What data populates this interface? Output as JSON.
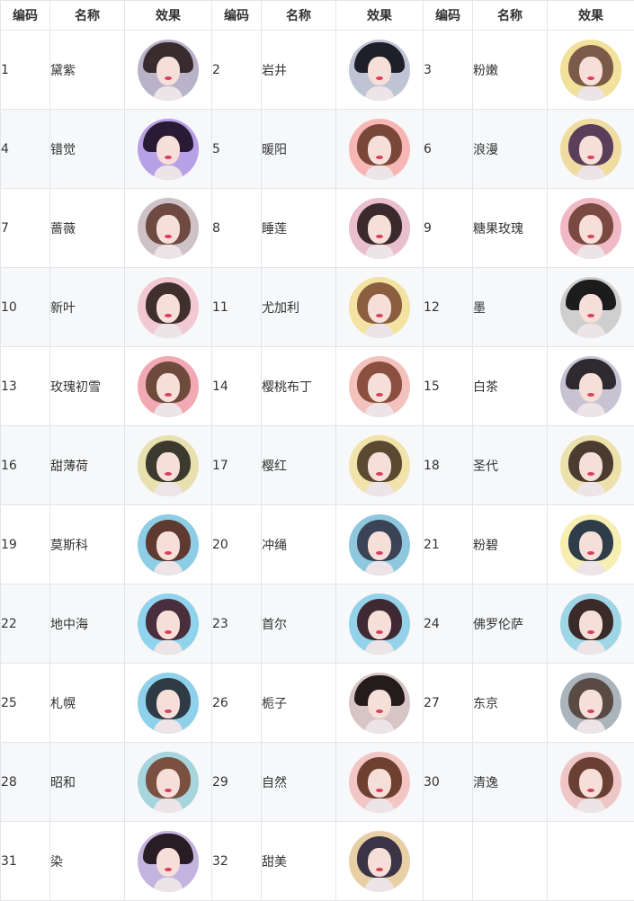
{
  "table": {
    "headers": [
      "编码",
      "名称",
      "效果",
      "编码",
      "名称",
      "效果",
      "编码",
      "名称",
      "效果"
    ],
    "rows": [
      [
        {
          "code": "1",
          "name": "黛紫",
          "bg": "#b9b3c9",
          "hair": "#3a2c2e",
          "hat": true
        },
        {
          "code": "2",
          "name": "岩井",
          "bg": "#bfc4d4",
          "hair": "#1f1f2a",
          "hat": true
        },
        {
          "code": "3",
          "name": "粉嫩",
          "bg": "#f2e19a",
          "hair": "#7b5a4a",
          "hat": false
        }
      ],
      [
        {
          "code": "4",
          "name": "错觉",
          "bg": "#b7a0e6",
          "hair": "#2a1a33",
          "hat": true
        },
        {
          "code": "5",
          "name": "暖阳",
          "bg": "#f6b7b4",
          "hair": "#7a4638",
          "hat": false
        },
        {
          "code": "6",
          "name": "浪漫",
          "bg": "#f0dca0",
          "hair": "#5a3e5a",
          "hat": false
        }
      ],
      [
        {
          "code": "7",
          "name": "蔷薇",
          "bg": "#cfc2c6",
          "hair": "#6e4a40",
          "hat": false
        },
        {
          "code": "8",
          "name": "睡莲",
          "bg": "#e9bfcd",
          "hair": "#3a2a2e",
          "hat": false
        },
        {
          "code": "9",
          "name": "糖果玫瑰",
          "bg": "#f1b9c6",
          "hair": "#7a4a40",
          "hat": false
        }
      ],
      [
        {
          "code": "10",
          "name": "新叶",
          "bg": "#f2c9d2",
          "hair": "#3f2f2d",
          "hat": false
        },
        {
          "code": "11",
          "name": "尤加利",
          "bg": "#f3e2a1",
          "hair": "#8a5e3e",
          "hat": false
        },
        {
          "code": "12",
          "name": "墨",
          "bg": "#cfcfcf",
          "hair": "#1c1c1c",
          "hat": true
        }
      ],
      [
        {
          "code": "13",
          "name": "玫瑰初雪",
          "bg": "#f2a9b4",
          "hair": "#6d4a3c",
          "hat": false
        },
        {
          "code": "14",
          "name": "樱桃布丁",
          "bg": "#f4c2bc",
          "hair": "#8a4f3e",
          "hat": false
        },
        {
          "code": "15",
          "name": "白茶",
          "bg": "#c7c3d3",
          "hair": "#2e2a30",
          "hat": true
        }
      ],
      [
        {
          "code": "16",
          "name": "甜薄荷",
          "bg": "#e9e0b0",
          "hair": "#3c3a2e",
          "hat": false
        },
        {
          "code": "17",
          "name": "樱红",
          "bg": "#f1e3aa",
          "hair": "#5a4a32",
          "hat": false
        },
        {
          "code": "18",
          "name": "圣代",
          "bg": "#ece1aa",
          "hair": "#4a3c30",
          "hat": false
        }
      ],
      [
        {
          "code": "19",
          "name": "莫斯科",
          "bg": "#8ecde6",
          "hair": "#5e3a30",
          "hat": false
        },
        {
          "code": "20",
          "name": "冲绳",
          "bg": "#8fc8de",
          "hair": "#3a4456",
          "hat": false
        },
        {
          "code": "21",
          "name": "粉碧",
          "bg": "#f7eeb2",
          "hair": "#2f3d4a",
          "hat": false
        }
      ],
      [
        {
          "code": "22",
          "name": "地中海",
          "bg": "#8fd3ec",
          "hair": "#4a2e3e",
          "hat": false
        },
        {
          "code": "23",
          "name": "首尔",
          "bg": "#93d2e9",
          "hair": "#3f2a33",
          "hat": false
        },
        {
          "code": "24",
          "name": "佛罗伦萨",
          "bg": "#9fd6e6",
          "hair": "#3a2a28",
          "hat": false
        }
      ],
      [
        {
          "code": "25",
          "name": "札幌",
          "bg": "#8fd0ea",
          "hair": "#2e3a44",
          "hat": false
        },
        {
          "code": "26",
          "name": "栀子",
          "bg": "#d7c4c4",
          "hair": "#241c1c",
          "hat": true
        },
        {
          "code": "27",
          "name": "东京",
          "bg": "#a9b4bc",
          "hair": "#5a4a44",
          "hat": false
        }
      ],
      [
        {
          "code": "28",
          "name": "昭和",
          "bg": "#a6d5de",
          "hair": "#7a5040",
          "hat": false
        },
        {
          "code": "29",
          "name": "自然",
          "bg": "#f1c6c4",
          "hair": "#6e4030",
          "hat": false
        },
        {
          "code": "30",
          "name": "清逸",
          "bg": "#efc6c6",
          "hair": "#6a4034",
          "hat": false
        }
      ],
      [
        {
          "code": "31",
          "name": "染",
          "bg": "#c3b3df",
          "hair": "#2a1c24",
          "hat": true
        },
        {
          "code": "32",
          "name": "甜美",
          "bg": "#e8cfa6",
          "hair": "#3a3446",
          "hat": false
        }
      ]
    ]
  }
}
